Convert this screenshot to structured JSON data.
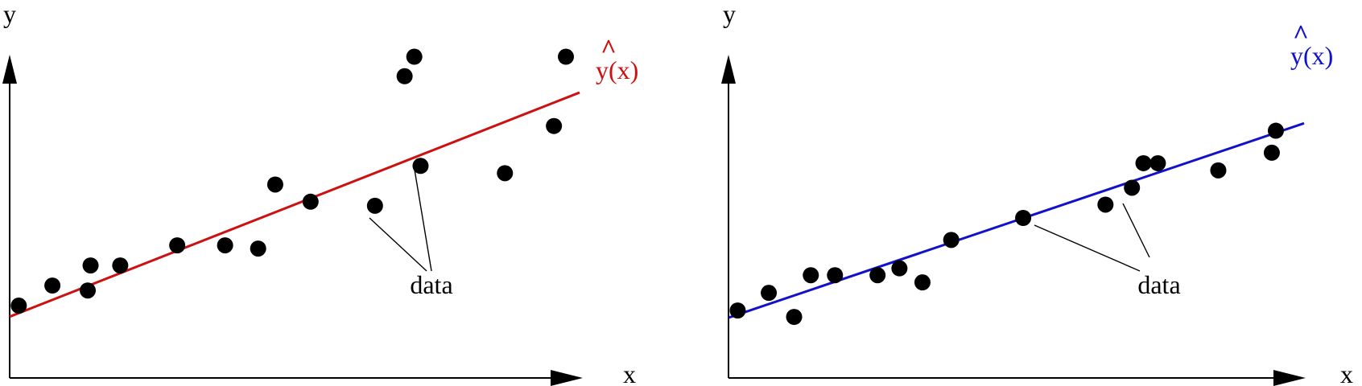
{
  "panels": [
    {
      "id": "left",
      "axis_labels": {
        "x": "x",
        "y": "y"
      },
      "fit": {
        "hat": "^",
        "label": "y(x)",
        "color": "#cc1111",
        "line": {
          "x_start": 0.0,
          "y_start": 0.1,
          "x_end": 1.0,
          "y_end": 0.87
        }
      },
      "callout_label": "data",
      "callout_targets": [
        14,
        15
      ],
      "points": [
        {
          "x": 0.016,
          "y": 0.138
        },
        {
          "x": 0.075,
          "y": 0.207
        },
        {
          "x": 0.137,
          "y": 0.19
        },
        {
          "x": 0.142,
          "y": 0.276
        },
        {
          "x": 0.194,
          "y": 0.276
        },
        {
          "x": 0.294,
          "y": 0.345
        },
        {
          "x": 0.378,
          "y": 0.345
        },
        {
          "x": 0.436,
          "y": 0.334
        },
        {
          "x": 0.466,
          "y": 0.554
        },
        {
          "x": 0.528,
          "y": 0.495
        },
        {
          "x": 0.641,
          "y": 0.481
        },
        {
          "x": 0.693,
          "y": 0.926
        },
        {
          "x": 0.71,
          "y": 0.993
        },
        {
          "x": 0.869,
          "y": 0.593
        },
        {
          "x": 0.955,
          "y": 0.755
        },
        {
          "x": 0.976,
          "y": 0.993
        },
        {
          "x": 0.721,
          "y": 0.618
        }
      ]
    },
    {
      "id": "right",
      "axis_labels": {
        "x": "x",
        "y": "y"
      },
      "fit": {
        "hat": "^",
        "label": "y(x)",
        "color": "#1111cc",
        "line": {
          "x_start": 0.0,
          "y_start": 0.11,
          "x_end": 1.0,
          "y_end": 0.87
        }
      },
      "callout_label": "data",
      "callout_targets": [
        9,
        11
      ],
      "points": [
        {
          "x": 0.016,
          "y": 0.138
        },
        {
          "x": 0.07,
          "y": 0.207
        },
        {
          "x": 0.114,
          "y": 0.113
        },
        {
          "x": 0.143,
          "y": 0.276
        },
        {
          "x": 0.185,
          "y": 0.276
        },
        {
          "x": 0.259,
          "y": 0.276
        },
        {
          "x": 0.297,
          "y": 0.303
        },
        {
          "x": 0.337,
          "y": 0.248
        },
        {
          "x": 0.387,
          "y": 0.414
        },
        {
          "x": 0.512,
          "y": 0.5
        },
        {
          "x": 0.655,
          "y": 0.552
        },
        {
          "x": 0.701,
          "y": 0.618
        },
        {
          "x": 0.721,
          "y": 0.714
        },
        {
          "x": 0.746,
          "y": 0.714
        },
        {
          "x": 0.851,
          "y": 0.686
        },
        {
          "x": 0.944,
          "y": 0.755
        },
        {
          "x": 0.951,
          "y": 0.841
        }
      ]
    }
  ]
}
